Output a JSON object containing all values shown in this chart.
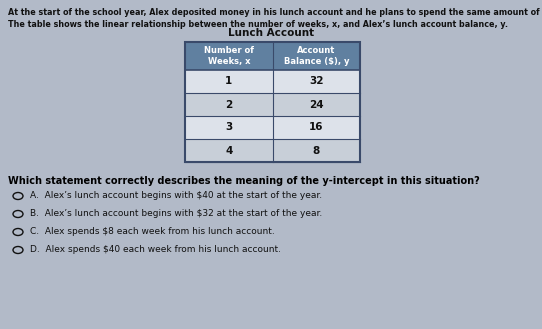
{
  "bg_color": "#b2bac8",
  "title_line1": "At the start of the school year, Alex deposited money in his lunch account and he plans to spend the same amount of money each week.",
  "title_line2": "The table shows the linear relationship between the number of weeks, x, and Alex’s lunch account balance, y.",
  "table_title": "Lunch Account",
  "col1_header": "Number of\nWeeks, x",
  "col2_header": "Account\nBalance ($), y",
  "rows": [
    [
      1,
      32
    ],
    [
      2,
      24
    ],
    [
      3,
      16
    ],
    [
      4,
      8
    ]
  ],
  "question": "Which statement correctly describes the meaning of the y-intercept in this situation?",
  "choices": [
    "A.  Alex’s lunch account begins with $40 at the start of the year.",
    "B.  Alex’s lunch account begins with $32 at the start of the year.",
    "C.  Alex spends $8 each week from his lunch account.",
    "D.  Alex spends $40 each week from his lunch account."
  ],
  "header_bg": "#6080a0",
  "row_bg_even": "#dde2ea",
  "row_bg_odd": "#c8cfd8",
  "header_text_color": "#ffffff",
  "table_border_color": "#3a4a6a",
  "text_color": "#111111",
  "question_color": "#000000"
}
